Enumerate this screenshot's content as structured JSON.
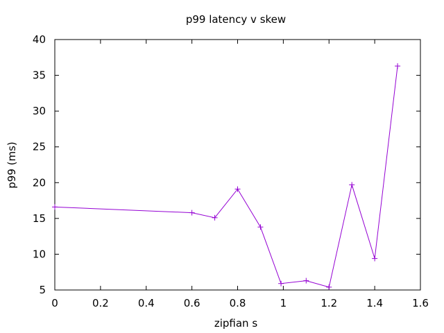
{
  "chart_data": {
    "type": "line",
    "title": "p99 latency v skew",
    "xlabel": "zipfian s",
    "ylabel": "p99 (ms)",
    "xlim": [
      0,
      1.6
    ],
    "ylim": [
      5,
      40
    ],
    "xticks": [
      "0",
      "0.2",
      "0.4",
      "0.6",
      "0.8",
      "1",
      "1.2",
      "1.4",
      "1.6"
    ],
    "yticks": [
      "5",
      "10",
      "15",
      "20",
      "25",
      "30",
      "35",
      "40"
    ],
    "grid": false,
    "legend": "none",
    "series": [
      {
        "color": "#9400d3",
        "marker": "plus",
        "points": [
          {
            "x": 0.0,
            "y": 16.6
          },
          {
            "x": 0.6,
            "y": 15.8
          },
          {
            "x": 0.7,
            "y": 15.1
          },
          {
            "x": 0.8,
            "y": 19.1
          },
          {
            "x": 0.9,
            "y": 13.8
          },
          {
            "x": 0.99,
            "y": 5.9
          },
          {
            "x": 1.1,
            "y": 6.3
          },
          {
            "x": 1.2,
            "y": 5.4
          },
          {
            "x": 1.3,
            "y": 19.7
          },
          {
            "x": 1.4,
            "y": 9.4
          },
          {
            "x": 1.5,
            "y": 36.3
          }
        ]
      }
    ]
  }
}
